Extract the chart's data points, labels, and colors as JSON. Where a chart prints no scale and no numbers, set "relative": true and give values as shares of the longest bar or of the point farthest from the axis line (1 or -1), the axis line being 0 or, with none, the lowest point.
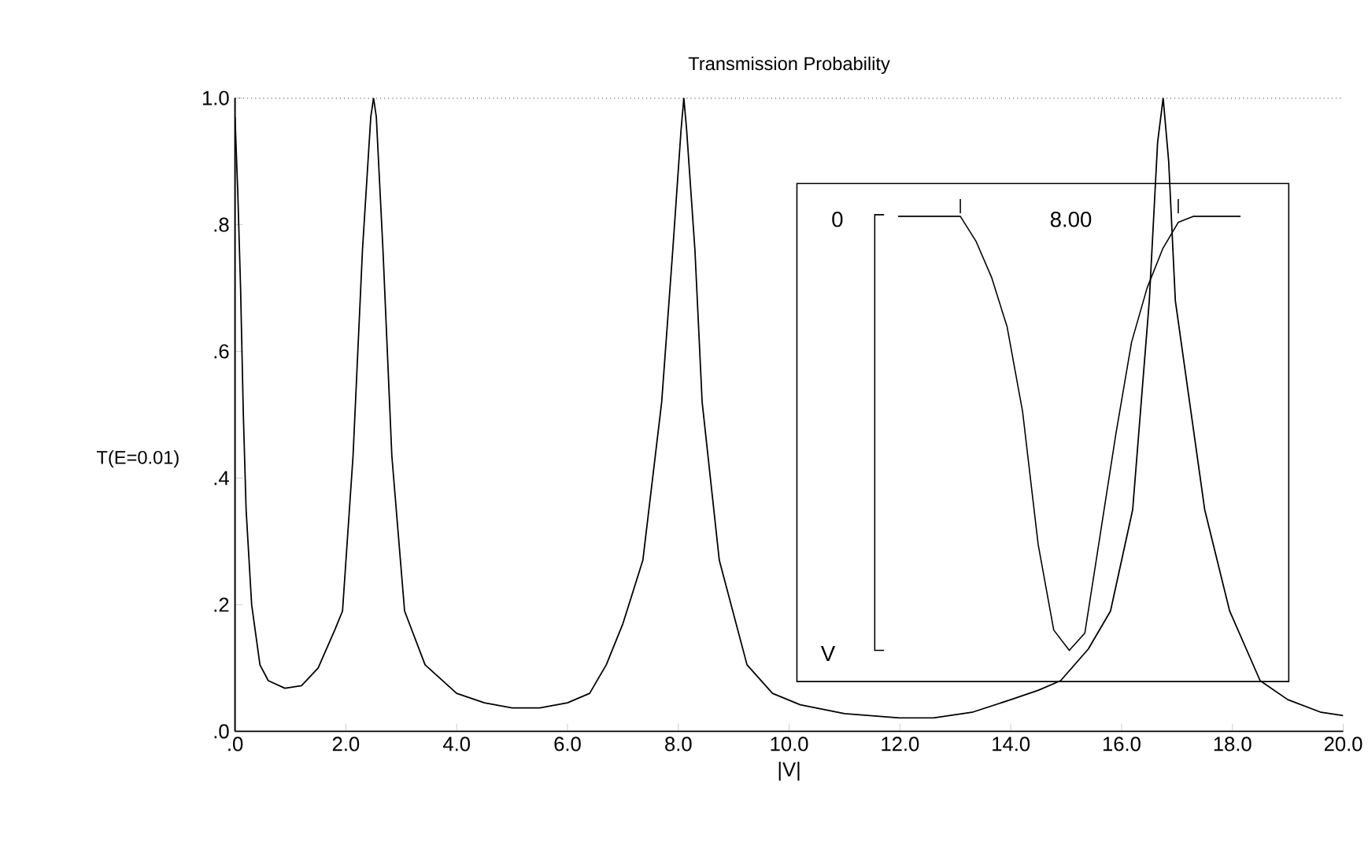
{
  "chart_data": [
    {
      "type": "line",
      "title": "Transmission Probability",
      "xlabel": "|V|",
      "ylabel": "T(E=0.01)",
      "x": [
        0.0,
        0.05,
        0.1,
        0.15,
        0.2,
        0.3,
        0.45,
        0.6,
        0.9,
        1.2,
        1.5,
        1.8,
        1.94,
        2.13,
        2.3,
        2.45,
        2.5,
        2.55,
        2.67,
        2.83,
        3.06,
        3.43,
        4.0,
        4.5,
        5.0,
        5.5,
        6.0,
        6.4,
        6.7,
        7.0,
        7.36,
        7.7,
        7.9,
        8.05,
        8.1,
        8.15,
        8.3,
        8.43,
        8.74,
        9.24,
        9.7,
        10.2,
        11.0,
        12.0,
        12.6,
        13.3,
        14.0,
        14.5,
        14.9,
        15.4,
        15.8,
        16.2,
        16.5,
        16.65,
        16.75,
        16.85,
        16.97,
        17.5,
        17.95,
        18.5,
        19.0,
        19.6,
        20.0
      ],
      "values": [
        0.97,
        0.85,
        0.7,
        0.5,
        0.35,
        0.2,
        0.105,
        0.08,
        0.068,
        0.072,
        0.1,
        0.16,
        0.19,
        0.435,
        0.76,
        0.97,
        1.0,
        0.97,
        0.76,
        0.435,
        0.19,
        0.105,
        0.06,
        0.045,
        0.037,
        0.037,
        0.045,
        0.06,
        0.105,
        0.17,
        0.27,
        0.52,
        0.76,
        0.95,
        1.0,
        0.95,
        0.76,
        0.52,
        0.27,
        0.105,
        0.06,
        0.042,
        0.028,
        0.021,
        0.021,
        0.03,
        0.05,
        0.065,
        0.08,
        0.13,
        0.19,
        0.35,
        0.68,
        0.93,
        1.0,
        0.9,
        0.68,
        0.35,
        0.19,
        0.08,
        0.05,
        0.03,
        0.025
      ],
      "color": "#000000",
      "marker": "none",
      "line_style": "solid",
      "xlim": [
        0,
        20
      ],
      "ylim": [
        0,
        1
      ],
      "xticks": [
        {
          "value": 0,
          "label": ".0"
        },
        {
          "value": 2,
          "label": "2.0"
        },
        {
          "value": 4,
          "label": "4.0"
        },
        {
          "value": 6,
          "label": "6.0"
        },
        {
          "value": 8,
          "label": "8.0"
        },
        {
          "value": 10,
          "label": "10.0"
        },
        {
          "value": 12,
          "label": "12.0"
        },
        {
          "value": 14,
          "label": "14.0"
        },
        {
          "value": 16,
          "label": "16.0"
        },
        {
          "value": 18,
          "label": "18.0"
        },
        {
          "value": 20,
          "label": "20.0"
        }
      ],
      "yticks": [
        {
          "value": 0,
          "label": ".0"
        },
        {
          "value": 0.2,
          "label": ".2"
        },
        {
          "value": 0.4,
          "label": ".4"
        },
        {
          "value": 0.6,
          "label": ".6"
        },
        {
          "value": 0.8,
          "label": ".8"
        },
        {
          "value": 1,
          "label": "1.0"
        }
      ],
      "ref_lines": [
        {
          "axis": "y",
          "value": 1,
          "line_style": "dotted"
        }
      ]
    },
    {
      "type": "line",
      "relative": true,
      "color": "#000000",
      "marker": "none",
      "line_style": "solid",
      "categories": [
        null,
        null,
        null,
        null,
        null,
        null,
        null,
        null,
        null,
        null,
        null,
        null,
        null,
        null,
        null,
        null,
        null,
        null,
        null,
        null,
        null,
        null,
        null
      ],
      "values": [
        0,
        0,
        0,
        0,
        0,
        -0.057,
        -0.14,
        -0.254,
        -0.45,
        -0.756,
        -0.953,
        -1,
        -0.96,
        -0.73,
        -0.5,
        -0.29,
        -0.165,
        -0.075,
        -0.014,
        0,
        0,
        0,
        0
      ],
      "annotations": [
        "0",
        "8.00",
        "V"
      ]
    }
  ]
}
